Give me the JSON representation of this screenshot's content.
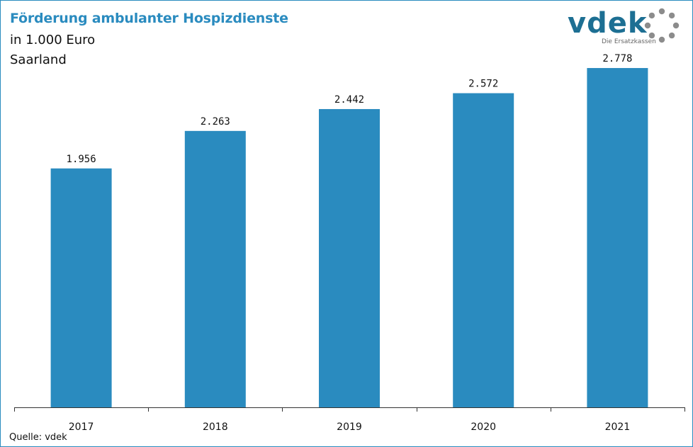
{
  "header": {
    "title": "Förderung ambulanter Hospizdienste",
    "subtitle_line1": "in 1.000 Euro",
    "subtitle_line2": "Saarland"
  },
  "logo": {
    "wordmark": "vdek",
    "tagline": "Die Ersatzkassen",
    "colors": {
      "wordmark": "#1d6f93",
      "ring": "#8c8c8c"
    }
  },
  "footer": {
    "source": "Quelle: vdek"
  },
  "colors": {
    "accent": "#2a8bbf",
    "bar": "#2a8bbf",
    "axis": "#333333",
    "text": "#111111"
  },
  "chart_data": {
    "type": "bar",
    "categories": [
      "2017",
      "2018",
      "2019",
      "2020",
      "2021"
    ],
    "values": [
      1956,
      2263,
      2442,
      2572,
      2778
    ],
    "value_labels": [
      "1.956",
      "2.263",
      "2.442",
      "2.572",
      "2.778"
    ],
    "ylim": [
      0,
      2900
    ],
    "grid": false,
    "legend": "none"
  }
}
